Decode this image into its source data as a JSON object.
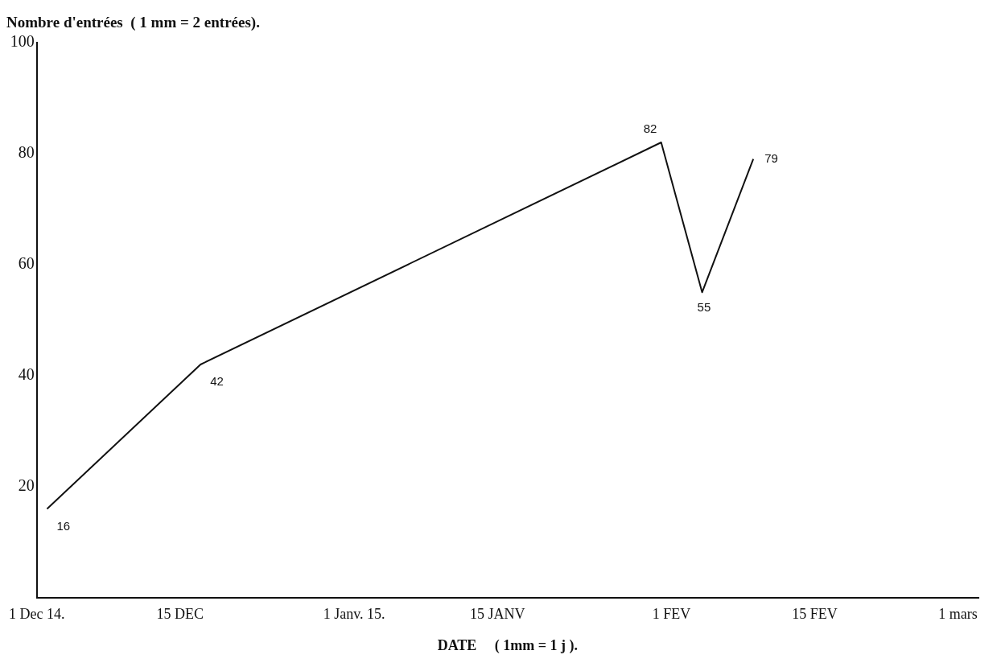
{
  "chart_data": {
    "type": "line",
    "title": "Nombre d'entrées  ( 1 mm = 2 entrées).",
    "xlabel": "DATE     ( 1mm = 1 j ).",
    "x": [
      "2014-12-02",
      "2014-12-17",
      "2015-01-31",
      "2015-02-04",
      "2015-02-09"
    ],
    "series": [
      {
        "color": "#111111",
        "values": [
          16,
          42,
          82,
          55,
          79
        ]
      }
    ],
    "data_labels": true,
    "marker": "none",
    "line_style": "solid",
    "grid": false,
    "legend": false,
    "xlim": [
      "2014-12-01",
      "2015-03-03"
    ],
    "xticks": [
      {
        "value": "2014-12-01",
        "label": "1 Dec 14."
      },
      {
        "value": "2014-12-15",
        "label": "15 DEC"
      },
      {
        "value": "2015-01-01",
        "label": "1 Janv. 15."
      },
      {
        "value": "2015-01-15",
        "label": "15 JANV"
      },
      {
        "value": "2015-02-01",
        "label": "1 FEV"
      },
      {
        "value": "2015-02-15",
        "label": "15 FEV"
      },
      {
        "value": "2015-03-01",
        "label": "1 mars"
      }
    ],
    "ylim": [
      0,
      100
    ],
    "yticks": [
      20,
      40,
      60,
      80,
      100
    ]
  }
}
